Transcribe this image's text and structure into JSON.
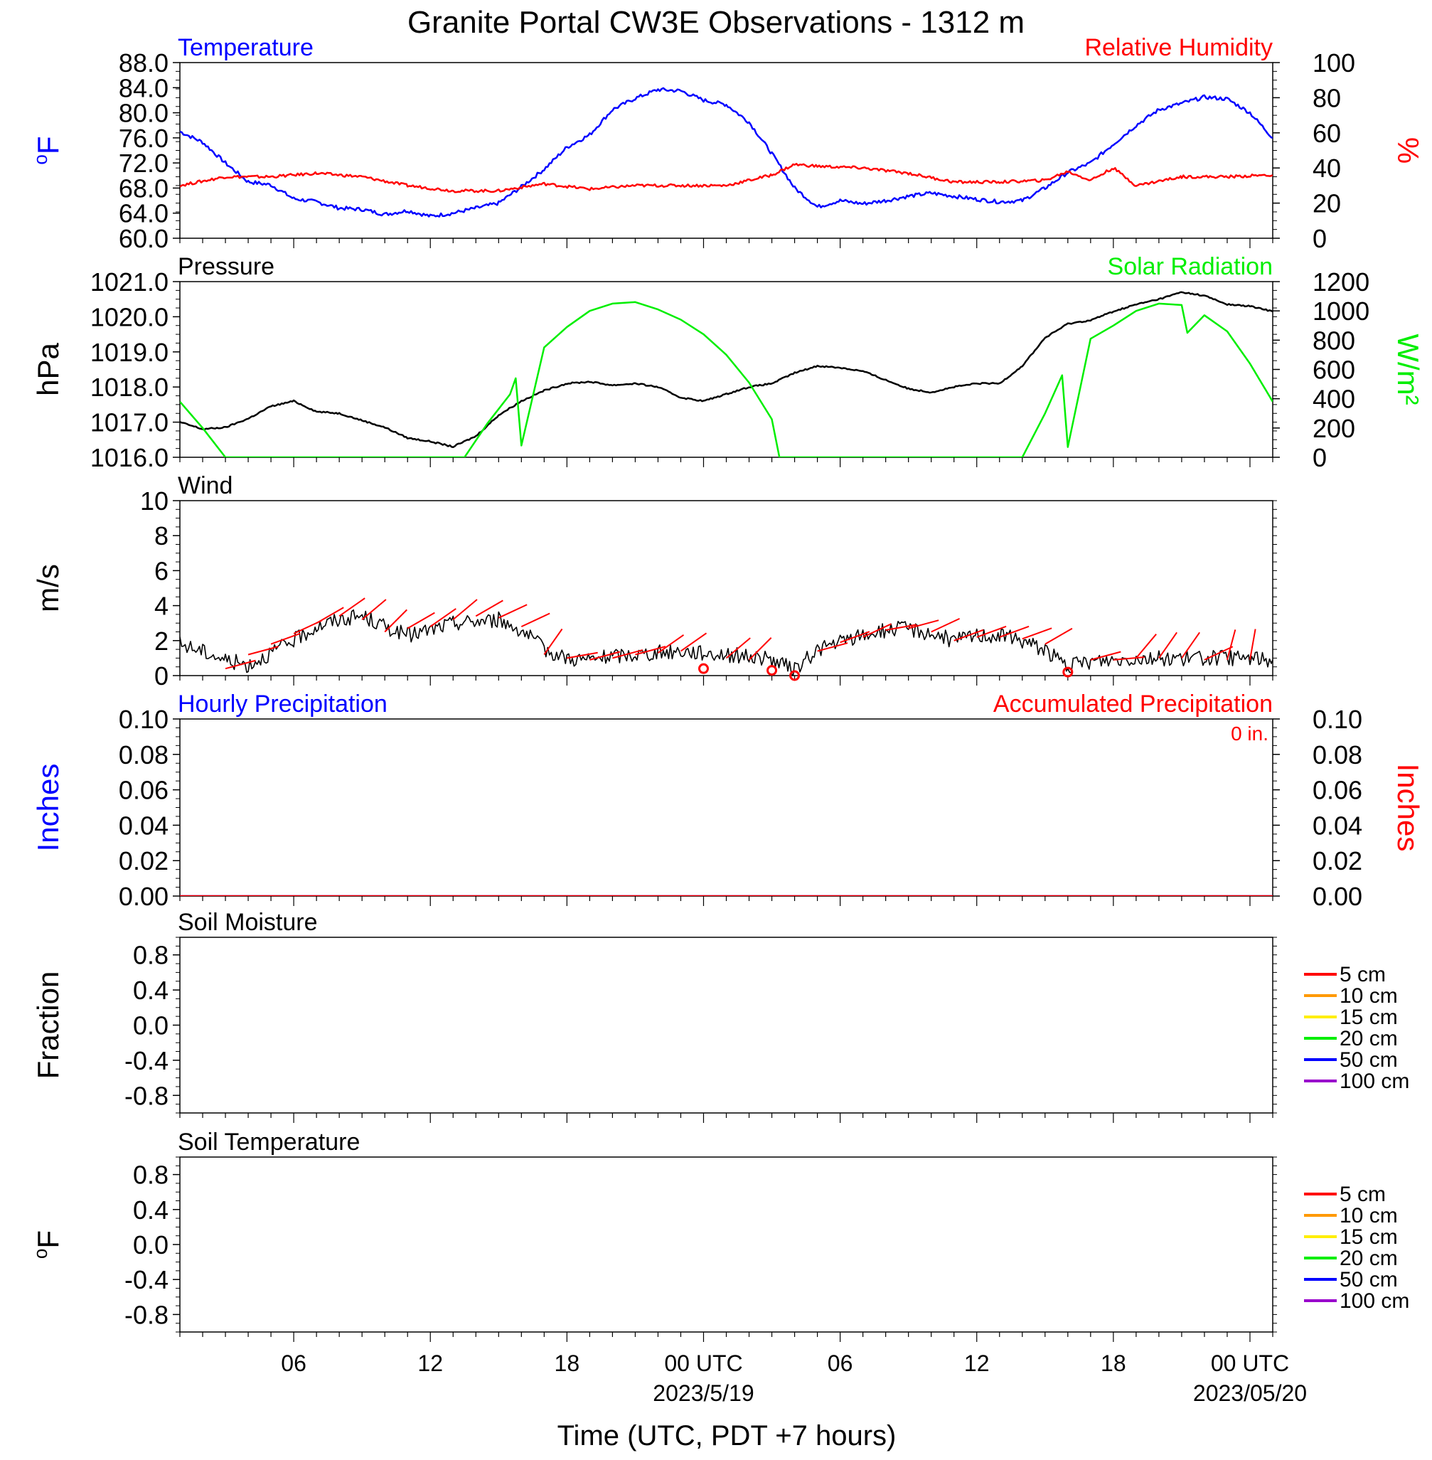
{
  "title": "Granite Portal CW3E Observations - 1312 m",
  "xlabel": "Time (UTC, PDT +7 hours)",
  "x_axis": {
    "start_utc": "2023-05-18 01:00",
    "end_utc": "2023-05-20 01:00",
    "tick_labels": [
      {
        "t": "2023-05-18 06:00",
        "label": "06"
      },
      {
        "t": "2023-05-18 12:00",
        "label": "12"
      },
      {
        "t": "2023-05-18 18:00",
        "label": "18"
      },
      {
        "t": "2023-05-19 00:00",
        "label": "00 UTC",
        "sub": "2023/5/19"
      },
      {
        "t": "2023-05-19 06:00",
        "label": "06"
      },
      {
        "t": "2023-05-19 12:00",
        "label": "12"
      },
      {
        "t": "2023-05-19 18:00",
        "label": "18"
      },
      {
        "t": "2023-05-20 00:00",
        "label": "00 UTC",
        "sub": "2023/05/20"
      }
    ]
  },
  "colors": {
    "temperature": "#0000ff",
    "humidity": "#ff0000",
    "pressure": "#000000",
    "solar": "#00ee00",
    "wind_speed": "#000000",
    "wind_barb": "#ff0000",
    "hourly_precip": "#0000ff",
    "accum_precip": "#ff0000"
  },
  "chart_data": [
    {
      "id": "temp_rh",
      "type": "line",
      "left_title": "Temperature",
      "right_title": "Relative Humidity",
      "ylabel_left": "°F",
      "ylabel_right": "%",
      "ylim_left": [
        60,
        88
      ],
      "ylim_right": [
        0,
        100
      ],
      "yticks_left": [
        "60.0",
        "64.0",
        "68.0",
        "72.0",
        "76.0",
        "80.0",
        "84.0",
        "88.0"
      ],
      "yticks_right": [
        "0",
        "20",
        "40",
        "60",
        "80",
        "100"
      ],
      "series": [
        {
          "name": "Temperature",
          "axis": "left",
          "x": [
            "2023-05-18 01:00",
            "2023-05-18 02:00",
            "2023-05-18 03:00",
            "2023-05-18 04:00",
            "2023-05-18 05:00",
            "2023-05-18 06:00",
            "2023-05-18 07:00",
            "2023-05-18 08:00",
            "2023-05-18 09:00",
            "2023-05-18 10:00",
            "2023-05-18 11:00",
            "2023-05-18 12:00",
            "2023-05-18 13:00",
            "2023-05-18 14:00",
            "2023-05-18 15:00",
            "2023-05-18 16:00",
            "2023-05-18 17:00",
            "2023-05-18 18:00",
            "2023-05-18 19:00",
            "2023-05-18 20:00",
            "2023-05-18 21:00",
            "2023-05-18 22:00",
            "2023-05-18 23:00",
            "2023-05-19 00:00",
            "2023-05-19 01:00",
            "2023-05-19 02:00",
            "2023-05-19 03:00",
            "2023-05-19 04:00",
            "2023-05-19 05:00",
            "2023-05-19 06:00",
            "2023-05-19 07:00",
            "2023-05-19 08:00",
            "2023-05-19 09:00",
            "2023-05-19 10:00",
            "2023-05-19 11:00",
            "2023-05-19 12:00",
            "2023-05-19 13:00",
            "2023-05-19 14:00",
            "2023-05-19 15:00",
            "2023-05-19 16:00",
            "2023-05-19 17:00",
            "2023-05-19 18:00",
            "2023-05-19 19:00",
            "2023-05-19 20:00",
            "2023-05-19 21:00",
            "2023-05-19 22:00",
            "2023-05-19 23:00",
            "2023-05-20 00:00",
            "2023-05-20 01:00"
          ],
          "values": [
            77.0,
            75.3,
            72.0,
            69.0,
            68.5,
            66.3,
            65.8,
            64.8,
            64.6,
            63.8,
            64.4,
            63.5,
            64.0,
            64.8,
            65.6,
            68.2,
            71.0,
            74.5,
            76.5,
            80.5,
            82.3,
            83.7,
            83.5,
            82.0,
            81.3,
            78.5,
            73.5,
            68.0,
            65.0,
            66.0,
            65.5,
            66.0,
            66.7,
            67.2,
            66.7,
            66.2,
            65.8,
            66.0,
            68.0,
            70.5,
            72.0,
            75.0,
            78.0,
            80.5,
            81.5,
            82.5,
            82.2,
            80.0,
            76.0
          ]
        },
        {
          "name": "Relative Humidity",
          "axis": "right",
          "x": [
            "2023-05-18 01:00",
            "2023-05-18 03:00",
            "2023-05-18 05:00",
            "2023-05-18 07:00",
            "2023-05-18 09:00",
            "2023-05-18 11:00",
            "2023-05-18 13:00",
            "2023-05-18 15:00",
            "2023-05-18 17:00",
            "2023-05-18 19:00",
            "2023-05-18 21:00",
            "2023-05-18 23:00",
            "2023-05-19 01:00",
            "2023-05-19 03:00",
            "2023-05-19 04:00",
            "2023-05-19 05:00",
            "2023-05-19 07:00",
            "2023-05-19 09:00",
            "2023-05-19 11:00",
            "2023-05-19 13:00",
            "2023-05-19 15:00",
            "2023-05-19 16:00",
            "2023-05-19 17:00",
            "2023-05-19 18:00",
            "2023-05-19 19:00",
            "2023-05-19 21:00",
            "2023-05-19 23:00",
            "2023-05-20 01:00"
          ],
          "values": [
            30,
            35,
            35,
            37,
            35,
            30,
            27,
            27,
            31,
            28,
            30,
            30,
            30,
            36,
            42,
            41,
            40,
            37,
            32,
            32,
            33,
            38,
            33,
            40,
            30,
            35,
            35,
            36
          ]
        }
      ]
    },
    {
      "id": "pres_solar",
      "type": "line",
      "left_title": "Pressure",
      "right_title": "Solar Radiation",
      "ylabel_left": "hPa",
      "ylabel_right": "W/m²",
      "ylim_left": [
        1016.0,
        1021.0
      ],
      "ylim_right": [
        0,
        1200
      ],
      "yticks_left": [
        "1016.0",
        "1017.0",
        "1018.0",
        "1019.0",
        "1020.0",
        "1021.0"
      ],
      "yticks_right": [
        "0",
        "200",
        "400",
        "600",
        "800",
        "1000",
        "1200"
      ],
      "series": [
        {
          "name": "Pressure",
          "axis": "left",
          "x": [
            "2023-05-18 01:00",
            "2023-05-18 02:00",
            "2023-05-18 03:00",
            "2023-05-18 04:00",
            "2023-05-18 05:00",
            "2023-05-18 06:00",
            "2023-05-18 07:00",
            "2023-05-18 08:00",
            "2023-05-18 09:00",
            "2023-05-18 10:00",
            "2023-05-18 11:00",
            "2023-05-18 12:00",
            "2023-05-18 13:00",
            "2023-05-18 14:00",
            "2023-05-18 15:00",
            "2023-05-18 16:00",
            "2023-05-18 17:00",
            "2023-05-18 18:00",
            "2023-05-18 19:00",
            "2023-05-18 20:00",
            "2023-05-18 21:00",
            "2023-05-18 22:00",
            "2023-05-18 23:00",
            "2023-05-19 00:00",
            "2023-05-19 01:00",
            "2023-05-19 02:00",
            "2023-05-19 03:00",
            "2023-05-19 04:00",
            "2023-05-19 05:00",
            "2023-05-19 06:00",
            "2023-05-19 07:00",
            "2023-05-19 08:00",
            "2023-05-19 09:00",
            "2023-05-19 10:00",
            "2023-05-19 11:00",
            "2023-05-19 12:00",
            "2023-05-19 13:00",
            "2023-05-19 14:00",
            "2023-05-19 15:00",
            "2023-05-19 16:00",
            "2023-05-19 17:00",
            "2023-05-19 18:00",
            "2023-05-19 19:00",
            "2023-05-19 20:00",
            "2023-05-19 21:00",
            "2023-05-19 22:00",
            "2023-05-19 23:00",
            "2023-05-20 00:00",
            "2023-05-20 01:00"
          ],
          "values": [
            1017.0,
            1016.8,
            1016.85,
            1017.1,
            1017.45,
            1017.6,
            1017.3,
            1017.25,
            1017.05,
            1016.85,
            1016.55,
            1016.45,
            1016.3,
            1016.6,
            1017.2,
            1017.6,
            1017.9,
            1018.1,
            1018.15,
            1018.05,
            1018.1,
            1018.0,
            1017.7,
            1017.6,
            1017.8,
            1018.0,
            1018.1,
            1018.4,
            1018.6,
            1018.55,
            1018.45,
            1018.2,
            1017.95,
            1017.85,
            1018.0,
            1018.1,
            1018.1,
            1018.6,
            1019.4,
            1019.8,
            1019.9,
            1020.15,
            1020.35,
            1020.5,
            1020.7,
            1020.6,
            1020.35,
            1020.3,
            1020.15
          ]
        },
        {
          "name": "Solar Radiation",
          "axis": "right",
          "x": [
            "2023-05-18 01:00",
            "2023-05-18 02:00",
            "2023-05-18 03:00",
            "2023-05-18 12:00",
            "2023-05-18 13:30",
            "2023-05-18 14:30",
            "2023-05-18 15:30",
            "2023-05-18 15:45",
            "2023-05-18 16:00",
            "2023-05-18 17:00",
            "2023-05-18 18:00",
            "2023-05-18 19:00",
            "2023-05-18 20:00",
            "2023-05-18 21:00",
            "2023-05-18 22:00",
            "2023-05-18 23:00",
            "2023-05-19 00:00",
            "2023-05-19 01:00",
            "2023-05-19 02:00",
            "2023-05-19 03:00",
            "2023-05-19 03:20",
            "2023-05-19 13:00",
            "2023-05-19 14:00",
            "2023-05-19 15:00",
            "2023-05-19 15:45",
            "2023-05-19 16:00",
            "2023-05-19 17:00",
            "2023-05-19 18:00",
            "2023-05-19 19:00",
            "2023-05-19 20:00",
            "2023-05-19 21:00",
            "2023-05-19 21:15",
            "2023-05-19 22:00",
            "2023-05-19 23:00",
            "2023-05-20 00:00",
            "2023-05-20 01:00"
          ],
          "values": [
            380,
            200,
            0,
            0,
            0,
            230,
            430,
            540,
            80,
            750,
            890,
            1000,
            1050,
            1060,
            1010,
            940,
            840,
            700,
            510,
            260,
            0,
            0,
            0,
            300,
            560,
            70,
            810,
            900,
            1000,
            1050,
            1040,
            850,
            970,
            860,
            640,
            380
          ]
        }
      ]
    },
    {
      "id": "wind",
      "type": "line",
      "left_title": "Wind",
      "ylabel_left": "m/s",
      "ylim_left": [
        0,
        10
      ],
      "yticks_left": [
        "0",
        "2",
        "4",
        "6",
        "8",
        "10"
      ],
      "series": [
        {
          "name": "Wind",
          "x": [
            "2023-05-18 01:00",
            "2023-05-18 02:00",
            "2023-05-18 03:00",
            "2023-05-18 04:00",
            "2023-05-18 05:00",
            "2023-05-18 06:00",
            "2023-05-18 07:00",
            "2023-05-18 08:00",
            "2023-05-18 09:00",
            "2023-05-18 10:00",
            "2023-05-18 11:00",
            "2023-05-18 12:00",
            "2023-05-18 13:00",
            "2023-05-18 14:00",
            "2023-05-18 15:00",
            "2023-05-18 16:00",
            "2023-05-18 17:00",
            "2023-05-18 18:00",
            "2023-05-18 19:00",
            "2023-05-18 20:00",
            "2023-05-18 21:00",
            "2023-05-18 22:00",
            "2023-05-18 23:00",
            "2023-05-19 00:00",
            "2023-05-19 01:00",
            "2023-05-19 02:00",
            "2023-05-19 03:00",
            "2023-05-19 04:00",
            "2023-05-19 05:00",
            "2023-05-19 06:00",
            "2023-05-19 07:00",
            "2023-05-19 08:00",
            "2023-05-19 09:00",
            "2023-05-19 10:00",
            "2023-05-19 11:00",
            "2023-05-19 12:00",
            "2023-05-19 13:00",
            "2023-05-19 14:00",
            "2023-05-19 15:00",
            "2023-05-19 16:00",
            "2023-05-19 17:00",
            "2023-05-19 18:00",
            "2023-05-19 19:00",
            "2023-05-19 20:00",
            "2023-05-19 21:00",
            "2023-05-19 22:00",
            "2023-05-19 23:00",
            "2023-05-20 00:00",
            "2023-05-20 01:00"
          ],
          "values": [
            1.8,
            1.4,
            0.9,
            0.6,
            1.3,
            2.0,
            2.8,
            3.2,
            3.4,
            2.8,
            2.3,
            2.6,
            3.0,
            3.1,
            3.2,
            2.6,
            1.5,
            1.0,
            0.9,
            1.1,
            1.2,
            1.3,
            1.4,
            1.3,
            1.2,
            1.1,
            0.9,
            0.3,
            1.5,
            1.9,
            2.3,
            2.6,
            2.7,
            2.4,
            2.0,
            2.3,
            2.3,
            2.0,
            1.5,
            0.5,
            0.8,
            0.9,
            1.0,
            1.0,
            1.0,
            1.0,
            1.0,
            1.0,
            0.9
          ]
        }
      ],
      "barbs": {
        "x": [
          "2023-05-18 03:00",
          "2023-05-18 04:00",
          "2023-05-18 05:00",
          "2023-05-18 06:00",
          "2023-05-18 07:00",
          "2023-05-18 08:00",
          "2023-05-18 09:00",
          "2023-05-18 10:00",
          "2023-05-18 11:00",
          "2023-05-18 12:00",
          "2023-05-18 13:00",
          "2023-05-18 14:00",
          "2023-05-18 15:00",
          "2023-05-18 16:00",
          "2023-05-18 17:00",
          "2023-05-18 18:00",
          "2023-05-18 19:00",
          "2023-05-18 20:00",
          "2023-05-18 21:00",
          "2023-05-18 22:00",
          "2023-05-18 23:00",
          "2023-05-19 01:00",
          "2023-05-19 02:00",
          "2023-05-19 05:00",
          "2023-05-19 06:00",
          "2023-05-19 07:00",
          "2023-05-19 08:00",
          "2023-05-19 09:00",
          "2023-05-19 10:00",
          "2023-05-19 11:00",
          "2023-05-19 12:00",
          "2023-05-19 13:00",
          "2023-05-19 14:00",
          "2023-05-19 15:00",
          "2023-05-19 17:00",
          "2023-05-19 18:00",
          "2023-05-19 19:00",
          "2023-05-19 20:00",
          "2023-05-19 21:00",
          "2023-05-19 22:00",
          "2023-05-19 23:00",
          "2023-05-20 00:00"
        ],
        "values": [
          0.4,
          1.2,
          1.8,
          2.4,
          3.0,
          3.4,
          3.2,
          2.5,
          2.7,
          2.8,
          3.2,
          3.4,
          3.3,
          2.8,
          1.2,
          1.0,
          0.9,
          1.0,
          1.2,
          1.3,
          1.4,
          1.0,
          0.9,
          1.4,
          1.9,
          2.2,
          2.6,
          2.7,
          2.5,
          2.0,
          2.2,
          2.2,
          2.1,
          1.8,
          0.9,
          0.9,
          1.0,
          1.0,
          1.0,
          0.9,
          0.9,
          0.9
        ],
        "angles": [
          -15,
          -15,
          -20,
          -25,
          -30,
          -35,
          -40,
          -45,
          -30,
          -35,
          -40,
          -30,
          -25,
          -25,
          -55,
          -10,
          -15,
          -15,
          -15,
          -35,
          -35,
          -40,
          -45,
          -15,
          -20,
          -25,
          -10,
          -15,
          -25,
          -20,
          -20,
          -20,
          -20,
          -30,
          -15,
          -5,
          -50,
          -55,
          -55,
          -25,
          -75,
          -80
        ]
      },
      "calm_x": [
        "2023-05-19 00:00",
        "2023-05-19 03:00",
        "2023-05-19 04:00",
        "2023-05-19 16:00"
      ],
      "calm_values": [
        0.4,
        0.3,
        0.0,
        0.2
      ]
    },
    {
      "id": "precip",
      "type": "line",
      "left_title": "Hourly Precipitation",
      "right_title": "Accumulated Precipitation",
      "accum_text": "0 in.",
      "ylabel_left": "Inches",
      "ylabel_right": "Inches",
      "ylim_left": [
        0,
        0.1
      ],
      "ylim_right": [
        0,
        0.1
      ],
      "yticks_left": [
        "0.00",
        "0.02",
        "0.04",
        "0.06",
        "0.08",
        "0.10"
      ],
      "yticks_right": [
        "0.00",
        "0.02",
        "0.04",
        "0.06",
        "0.08",
        "0.10"
      ],
      "series": [
        {
          "name": "Hourly Precipitation",
          "x": [
            "2023-05-18 01:00",
            "2023-05-20 01:00"
          ],
          "values": [
            0,
            0
          ]
        },
        {
          "name": "Accumulated Precipitation",
          "x": [
            "2023-05-18 01:00",
            "2023-05-20 01:00"
          ],
          "values": [
            0,
            0
          ]
        }
      ]
    },
    {
      "id": "soil_moist",
      "type": "line",
      "left_title": "Soil Moisture",
      "ylabel_left": "Fraction",
      "ylim_left": [
        -1,
        1
      ],
      "yticks_left": [
        "-0.8",
        "-0.4",
        "0.0",
        "0.4",
        "0.8"
      ],
      "legend": [
        {
          "label": "5 cm",
          "color": "#ff0000"
        },
        {
          "label": "10 cm",
          "color": "#ff9900"
        },
        {
          "label": "15 cm",
          "color": "#ffee00"
        },
        {
          "label": "20 cm",
          "color": "#00ee00"
        },
        {
          "label": "50 cm",
          "color": "#0000ff"
        },
        {
          "label": "100 cm",
          "color": "#9900cc"
        }
      ],
      "series": []
    },
    {
      "id": "soil_temp",
      "type": "line",
      "left_title": "Soil Temperature",
      "ylabel_left": "°F",
      "ylim_left": [
        -1,
        1
      ],
      "yticks_left": [
        "-0.8",
        "-0.4",
        "0.0",
        "0.4",
        "0.8"
      ],
      "legend": [
        {
          "label": "5 cm",
          "color": "#ff0000"
        },
        {
          "label": "10 cm",
          "color": "#ff9900"
        },
        {
          "label": "15 cm",
          "color": "#ffee00"
        },
        {
          "label": "20 cm",
          "color": "#00ee00"
        },
        {
          "label": "50 cm",
          "color": "#0000ff"
        },
        {
          "label": "100 cm",
          "color": "#9900cc"
        }
      ],
      "series": []
    }
  ]
}
